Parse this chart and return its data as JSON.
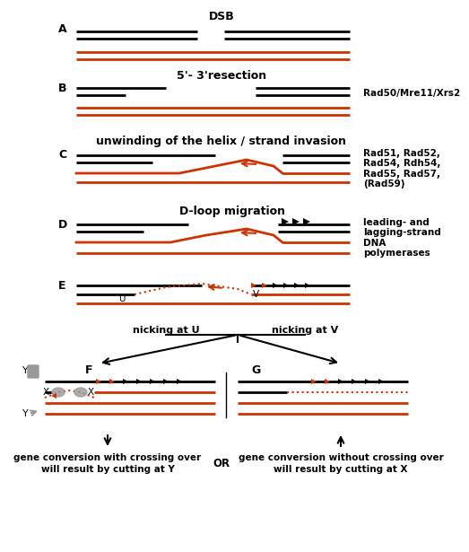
{
  "black": "#000000",
  "red": "#CC3300",
  "gray": "#999999",
  "bg": "#ffffff",
  "annotations": {
    "A_title": "DSB",
    "B_title": "5'- 3'resection",
    "C_title": "unwinding of the helix / strand invasion",
    "D_title": "D-loop migration",
    "nick_U": "nicking at U",
    "nick_V": "nicking at V",
    "bottom_left1": "gene conversion with crossing over",
    "bottom_left2": "will result by cutting at Y",
    "bottom_right1": "gene conversion without crossing over",
    "bottom_right2": "will result by cutting at X",
    "or_text": "OR"
  },
  "right_labels": {
    "B": "Rad50/Mre11/Xrs2",
    "C": "Rad51, Rad52,\nRad54, Rdh54,\nRad55, Rad57,\n(Rad59)",
    "D": "leading- and\nlagging-strand\nDNA\npolymerases"
  }
}
